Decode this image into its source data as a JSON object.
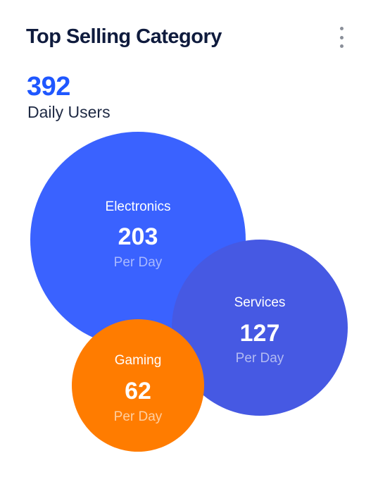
{
  "header": {
    "title": "Top Selling Category",
    "menu_icon": "kebab-vertical-icon"
  },
  "kpi": {
    "value": "392",
    "label": "Daily Users"
  },
  "colors": {
    "accent": "#1f57ff",
    "electronics": "#3a62ff",
    "services": "#4659e3",
    "gaming": "#ff7c00"
  },
  "chart_data": {
    "type": "bubble",
    "title": "Top Selling Category",
    "total": 392,
    "total_label": "Daily Users",
    "unit": "Per Day",
    "series": [
      {
        "name": "Electronics",
        "value": 203,
        "unit": "Per Day",
        "color": "#3a62ff"
      },
      {
        "name": "Services",
        "value": 127,
        "unit": "Per Day",
        "color": "#4659e3"
      },
      {
        "name": "Gaming",
        "value": 62,
        "unit": "Per Day",
        "color": "#ff7c00"
      }
    ]
  }
}
